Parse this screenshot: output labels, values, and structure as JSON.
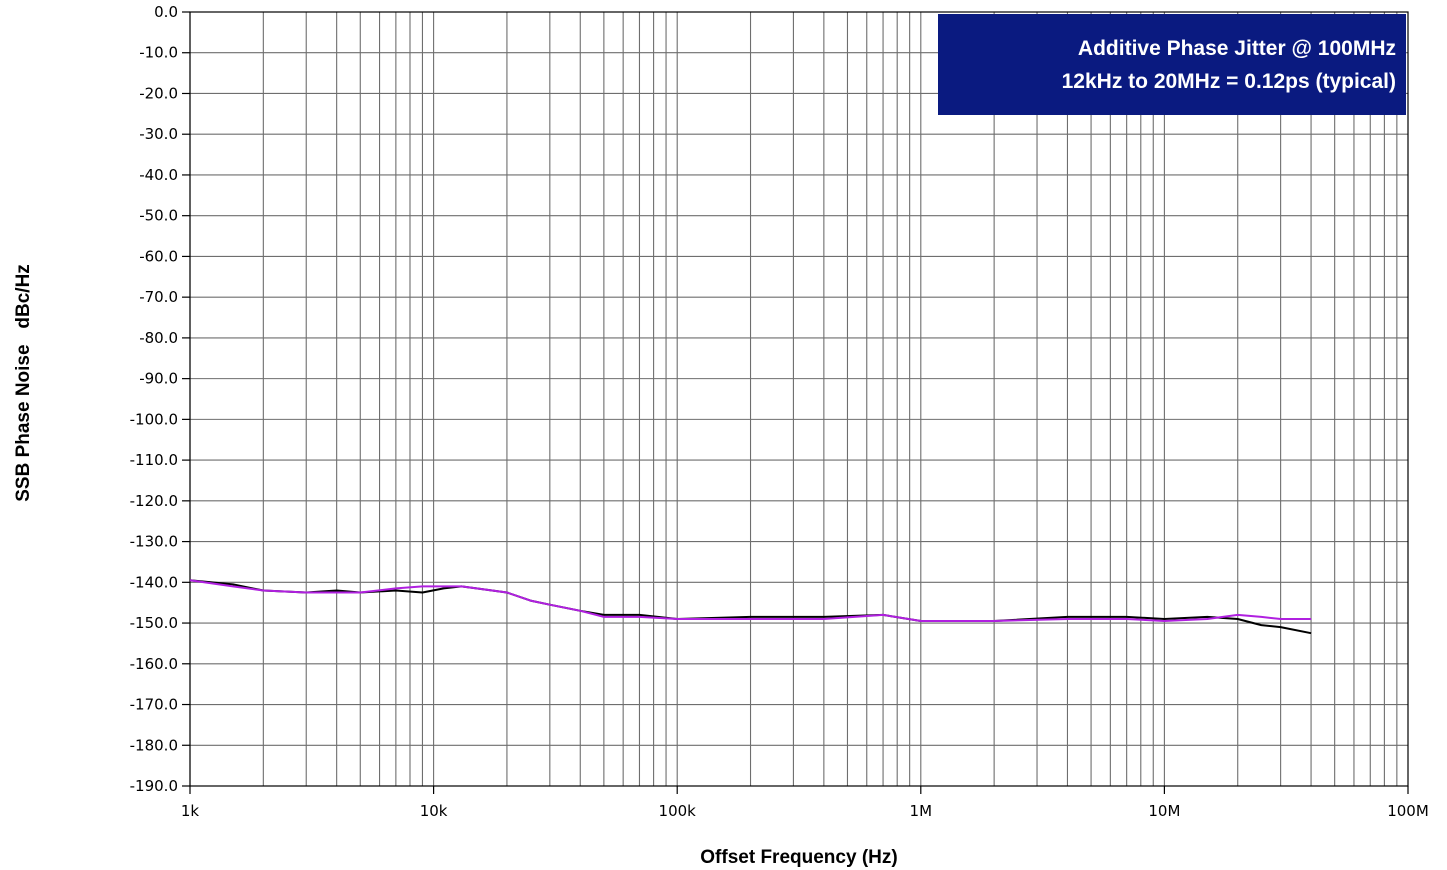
{
  "chart_data": {
    "type": "line",
    "xscale": "log",
    "xlim": [
      1000,
      100000000
    ],
    "ylim": [
      -190,
      0
    ],
    "xlabel": "Offset Frequency (Hz)",
    "ylabel": "SSB Phase Noise   dBc/Hz",
    "x_tick_values": [
      1000,
      10000,
      100000,
      1000000,
      10000000,
      100000000
    ],
    "x_tick_labels": [
      "1k",
      "10k",
      "100k",
      "1M",
      "10M",
      "100M"
    ],
    "y_tick_values": [
      0,
      -10,
      -20,
      -30,
      -40,
      -50,
      -60,
      -70,
      -80,
      -90,
      -100,
      -110,
      -120,
      -130,
      -140,
      -150,
      -160,
      -170,
      -180,
      -190
    ],
    "y_tick_labels": [
      "0.0",
      "-10.0",
      "-20.0",
      "-30.0",
      "-40.0",
      "-50.0",
      "-60.0",
      "-70.0",
      "-80.0",
      "-90.0",
      "-100.0",
      "-110.0",
      "-120.0",
      "-130.0",
      "-140.0",
      "-150.0",
      "-160.0",
      "-170.0",
      "-180.0",
      "-190.0"
    ],
    "grid": true,
    "annotation": {
      "lines": [
        "Additive Phase Jitter @ 100MHz",
        "12kHz to 20MHz = 0.12ps (typical)"
      ],
      "placement": "top-right",
      "background": "#0a1a80",
      "text_color": "#ffffff"
    },
    "series": [
      {
        "color": "#000000",
        "x": [
          1000,
          1500,
          2000,
          3000,
          4000,
          5000,
          7000,
          9000,
          11000,
          13000,
          15000,
          20000,
          25000,
          30000,
          40000,
          50000,
          70000,
          100000,
          200000,
          400000,
          700000,
          1000000,
          2000000,
          4000000,
          7000000,
          10000000,
          15000000,
          20000000,
          25000000,
          30000000,
          40000000
        ],
        "y": [
          -139.5,
          -140.5,
          -142,
          -142.5,
          -142,
          -142.5,
          -142,
          -142.5,
          -141.5,
          -141,
          -141.5,
          -142.5,
          -144.5,
          -145.5,
          -147,
          -148,
          -148,
          -149,
          -148.5,
          -148.5,
          -148,
          -149.5,
          -149.5,
          -148.5,
          -148.5,
          -149,
          -148.5,
          -149,
          -150.5,
          -151,
          -152.5
        ]
      },
      {
        "color": "#b020e0",
        "x": [
          1000,
          1500,
          2000,
          3000,
          4000,
          5000,
          7000,
          9000,
          11000,
          13000,
          15000,
          20000,
          25000,
          30000,
          40000,
          50000,
          70000,
          100000,
          200000,
          400000,
          700000,
          1000000,
          2000000,
          4000000,
          7000000,
          10000000,
          15000000,
          20000000,
          25000000,
          30000000,
          40000000
        ],
        "y": [
          -139.5,
          -141,
          -142,
          -142.5,
          -142.5,
          -142.5,
          -141.5,
          -141,
          -141,
          -141,
          -141.5,
          -142.5,
          -144.5,
          -145.5,
          -147,
          -148.5,
          -148.5,
          -149,
          -149,
          -149,
          -148,
          -149.5,
          -149.5,
          -149,
          -149,
          -149.5,
          -149,
          -148,
          -148.5,
          -149,
          -149
        ]
      }
    ]
  }
}
